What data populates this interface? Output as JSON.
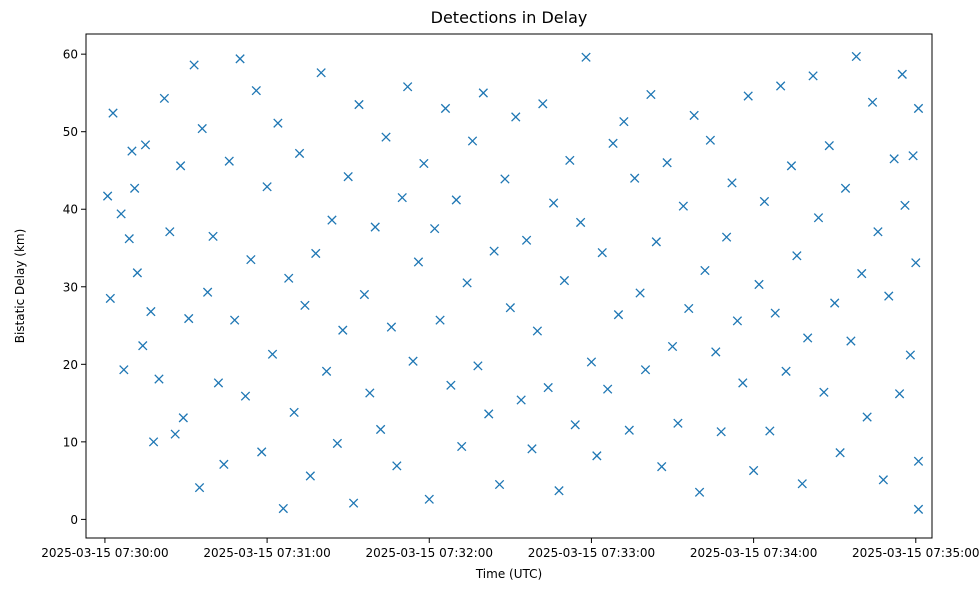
{
  "chart_data": {
    "type": "scatter",
    "title": "Detections in Delay",
    "xlabel": "Time (UTC)",
    "ylabel": "Bistatic Delay (km)",
    "x_tick_labels": [
      "2025-03-15 07:30:00",
      "2025-03-15 07:31:00",
      "2025-03-15 07:32:00",
      "2025-03-15 07:33:00",
      "2025-03-15 07:34:00",
      "2025-03-15 07:35:00"
    ],
    "y_tick_labels": [
      "0",
      "10",
      "20",
      "30",
      "40",
      "50",
      "60"
    ],
    "xlim": [
      "2025-03-15 07:29:53",
      "2025-03-15 07:35:06"
    ],
    "ylim": [
      -2.4,
      62.6
    ],
    "marker": "x",
    "grid": false,
    "color": "#1f77b4",
    "series": [
      {
        "points": [
          [
            "2025-03-15 07:30:01",
            41.7
          ],
          [
            "2025-03-15 07:30:02",
            28.5
          ],
          [
            "2025-03-15 07:30:03",
            52.4
          ],
          [
            "2025-03-15 07:30:06",
            39.4
          ],
          [
            "2025-03-15 07:30:07",
            19.3
          ],
          [
            "2025-03-15 07:30:09",
            36.2
          ],
          [
            "2025-03-15 07:30:10",
            47.5
          ],
          [
            "2025-03-15 07:30:11",
            42.7
          ],
          [
            "2025-03-15 07:30:12",
            31.8
          ],
          [
            "2025-03-15 07:30:14",
            22.4
          ],
          [
            "2025-03-15 07:30:15",
            48.3
          ],
          [
            "2025-03-15 07:30:17",
            26.8
          ],
          [
            "2025-03-15 07:30:18",
            10.0
          ],
          [
            "2025-03-15 07:30:20",
            18.1
          ],
          [
            "2025-03-15 07:30:22",
            54.3
          ],
          [
            "2025-03-15 07:30:24",
            37.1
          ],
          [
            "2025-03-15 07:30:26",
            11.0
          ],
          [
            "2025-03-15 07:30:28",
            45.6
          ],
          [
            "2025-03-15 07:30:29",
            13.1
          ],
          [
            "2025-03-15 07:30:31",
            25.9
          ],
          [
            "2025-03-15 07:30:33",
            58.6
          ],
          [
            "2025-03-15 07:30:35",
            4.1
          ],
          [
            "2025-03-15 07:30:36",
            50.4
          ],
          [
            "2025-03-15 07:30:38",
            29.3
          ],
          [
            "2025-03-15 07:30:40",
            36.5
          ],
          [
            "2025-03-15 07:30:42",
            17.6
          ],
          [
            "2025-03-15 07:30:44",
            7.1
          ],
          [
            "2025-03-15 07:30:46",
            46.2
          ],
          [
            "2025-03-15 07:30:48",
            25.7
          ],
          [
            "2025-03-15 07:30:50",
            59.4
          ],
          [
            "2025-03-15 07:30:52",
            15.9
          ],
          [
            "2025-03-15 07:30:54",
            33.5
          ],
          [
            "2025-03-15 07:30:56",
            55.3
          ],
          [
            "2025-03-15 07:30:58",
            8.7
          ],
          [
            "2025-03-15 07:31:00",
            42.9
          ],
          [
            "2025-03-15 07:31:02",
            21.3
          ],
          [
            "2025-03-15 07:31:04",
            51.1
          ],
          [
            "2025-03-15 07:31:06",
            1.4
          ],
          [
            "2025-03-15 07:31:08",
            31.1
          ],
          [
            "2025-03-15 07:31:10",
            13.8
          ],
          [
            "2025-03-15 07:31:12",
            47.2
          ],
          [
            "2025-03-15 07:31:14",
            27.6
          ],
          [
            "2025-03-15 07:31:16",
            5.6
          ],
          [
            "2025-03-15 07:31:18",
            34.3
          ],
          [
            "2025-03-15 07:31:20",
            57.6
          ],
          [
            "2025-03-15 07:31:22",
            19.1
          ],
          [
            "2025-03-15 07:31:24",
            38.6
          ],
          [
            "2025-03-15 07:31:26",
            9.8
          ],
          [
            "2025-03-15 07:31:28",
            24.4
          ],
          [
            "2025-03-15 07:31:30",
            44.2
          ],
          [
            "2025-03-15 07:31:32",
            2.1
          ],
          [
            "2025-03-15 07:31:34",
            53.5
          ],
          [
            "2025-03-15 07:31:36",
            29.0
          ],
          [
            "2025-03-15 07:31:38",
            16.3
          ],
          [
            "2025-03-15 07:31:40",
            37.7
          ],
          [
            "2025-03-15 07:31:42",
            11.6
          ],
          [
            "2025-03-15 07:31:44",
            49.3
          ],
          [
            "2025-03-15 07:31:46",
            24.8
          ],
          [
            "2025-03-15 07:31:48",
            6.9
          ],
          [
            "2025-03-15 07:31:50",
            41.5
          ],
          [
            "2025-03-15 07:31:52",
            55.8
          ],
          [
            "2025-03-15 07:31:54",
            20.4
          ],
          [
            "2025-03-15 07:31:56",
            33.2
          ],
          [
            "2025-03-15 07:31:58",
            45.9
          ],
          [
            "2025-03-15 07:32:00",
            2.6
          ],
          [
            "2025-03-15 07:32:02",
            37.5
          ],
          [
            "2025-03-15 07:32:04",
            25.7
          ],
          [
            "2025-03-15 07:32:06",
            53.0
          ],
          [
            "2025-03-15 07:32:08",
            17.3
          ],
          [
            "2025-03-15 07:32:10",
            41.2
          ],
          [
            "2025-03-15 07:32:12",
            9.4
          ],
          [
            "2025-03-15 07:32:14",
            30.5
          ],
          [
            "2025-03-15 07:32:16",
            48.8
          ],
          [
            "2025-03-15 07:32:18",
            19.8
          ],
          [
            "2025-03-15 07:32:20",
            55.0
          ],
          [
            "2025-03-15 07:32:22",
            13.6
          ],
          [
            "2025-03-15 07:32:24",
            34.6
          ],
          [
            "2025-03-15 07:32:26",
            4.5
          ],
          [
            "2025-03-15 07:32:28",
            43.9
          ],
          [
            "2025-03-15 07:32:30",
            27.3
          ],
          [
            "2025-03-15 07:32:32",
            51.9
          ],
          [
            "2025-03-15 07:32:34",
            15.4
          ],
          [
            "2025-03-15 07:32:36",
            36.0
          ],
          [
            "2025-03-15 07:32:38",
            9.1
          ],
          [
            "2025-03-15 07:32:40",
            24.3
          ],
          [
            "2025-03-15 07:32:42",
            53.6
          ],
          [
            "2025-03-15 07:32:44",
            17.0
          ],
          [
            "2025-03-15 07:32:46",
            40.8
          ],
          [
            "2025-03-15 07:32:48",
            3.7
          ],
          [
            "2025-03-15 07:32:50",
            30.8
          ],
          [
            "2025-03-15 07:32:52",
            46.3
          ],
          [
            "2025-03-15 07:32:54",
            12.2
          ],
          [
            "2025-03-15 07:32:56",
            38.3
          ],
          [
            "2025-03-15 07:32:58",
            59.6
          ],
          [
            "2025-03-15 07:33:00",
            20.3
          ],
          [
            "2025-03-15 07:33:02",
            8.2
          ],
          [
            "2025-03-15 07:33:04",
            34.4
          ],
          [
            "2025-03-15 07:33:06",
            16.8
          ],
          [
            "2025-03-15 07:33:08",
            48.5
          ],
          [
            "2025-03-15 07:33:10",
            26.4
          ],
          [
            "2025-03-15 07:33:12",
            51.3
          ],
          [
            "2025-03-15 07:33:14",
            11.5
          ],
          [
            "2025-03-15 07:33:16",
            44.0
          ],
          [
            "2025-03-15 07:33:18",
            29.2
          ],
          [
            "2025-03-15 07:33:20",
            19.3
          ],
          [
            "2025-03-15 07:33:22",
            54.8
          ],
          [
            "2025-03-15 07:33:24",
            35.8
          ],
          [
            "2025-03-15 07:33:26",
            6.8
          ],
          [
            "2025-03-15 07:33:28",
            46.0
          ],
          [
            "2025-03-15 07:33:30",
            22.3
          ],
          [
            "2025-03-15 07:33:32",
            12.4
          ],
          [
            "2025-03-15 07:33:34",
            40.4
          ],
          [
            "2025-03-15 07:33:36",
            27.2
          ],
          [
            "2025-03-15 07:33:38",
            52.1
          ],
          [
            "2025-03-15 07:33:40",
            3.5
          ],
          [
            "2025-03-15 07:33:42",
            32.1
          ],
          [
            "2025-03-15 07:33:44",
            48.9
          ],
          [
            "2025-03-15 07:33:46",
            21.6
          ],
          [
            "2025-03-15 07:33:48",
            11.3
          ],
          [
            "2025-03-15 07:33:50",
            36.4
          ],
          [
            "2025-03-15 07:33:52",
            43.4
          ],
          [
            "2025-03-15 07:33:54",
            25.6
          ],
          [
            "2025-03-15 07:33:56",
            17.6
          ],
          [
            "2025-03-15 07:33:58",
            54.6
          ],
          [
            "2025-03-15 07:34:00",
            6.3
          ],
          [
            "2025-03-15 07:34:02",
            30.3
          ],
          [
            "2025-03-15 07:34:04",
            41.0
          ],
          [
            "2025-03-15 07:34:06",
            11.4
          ],
          [
            "2025-03-15 07:34:08",
            26.6
          ],
          [
            "2025-03-15 07:34:10",
            55.9
          ],
          [
            "2025-03-15 07:34:12",
            19.1
          ],
          [
            "2025-03-15 07:34:14",
            45.6
          ],
          [
            "2025-03-15 07:34:16",
            34.0
          ],
          [
            "2025-03-15 07:34:18",
            4.6
          ],
          [
            "2025-03-15 07:34:20",
            23.4
          ],
          [
            "2025-03-15 07:34:22",
            57.2
          ],
          [
            "2025-03-15 07:34:24",
            38.9
          ],
          [
            "2025-03-15 07:34:26",
            16.4
          ],
          [
            "2025-03-15 07:34:28",
            48.2
          ],
          [
            "2025-03-15 07:34:30",
            27.9
          ],
          [
            "2025-03-15 07:34:32",
            8.6
          ],
          [
            "2025-03-15 07:34:34",
            42.7
          ],
          [
            "2025-03-15 07:34:36",
            23.0
          ],
          [
            "2025-03-15 07:34:38",
            59.7
          ],
          [
            "2025-03-15 07:34:40",
            31.7
          ],
          [
            "2025-03-15 07:34:42",
            13.2
          ],
          [
            "2025-03-15 07:34:44",
            53.8
          ],
          [
            "2025-03-15 07:34:46",
            37.1
          ],
          [
            "2025-03-15 07:34:48",
            5.1
          ],
          [
            "2025-03-15 07:34:50",
            28.8
          ],
          [
            "2025-03-15 07:34:52",
            46.5
          ],
          [
            "2025-03-15 07:34:54",
            16.2
          ],
          [
            "2025-03-15 07:34:56",
            40.5
          ],
          [
            "2025-03-15 07:34:58",
            21.2
          ],
          [
            "2025-03-15 07:35:00",
            33.1
          ],
          [
            "2025-03-15 07:35:01",
            53.0
          ],
          [
            "2025-03-15 07:35:01",
            7.5
          ],
          [
            "2025-03-15 07:35:01",
            1.3
          ],
          [
            "2025-03-15 07:34:59",
            46.9
          ],
          [
            "2025-03-15 07:34:55",
            57.4
          ]
        ]
      }
    ]
  }
}
